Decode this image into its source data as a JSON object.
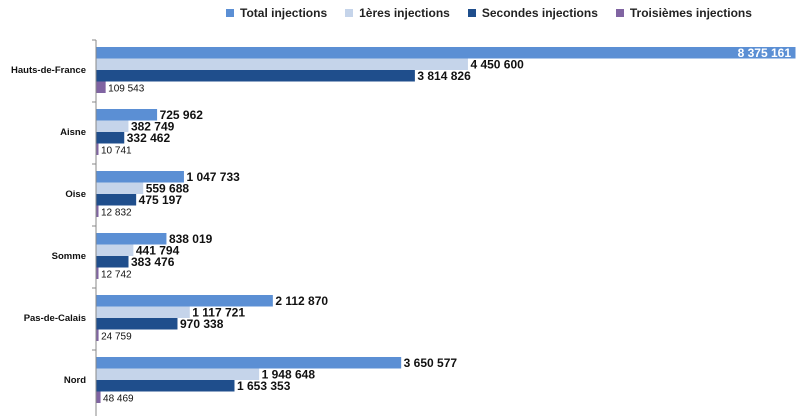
{
  "chart_data": {
    "type": "bar",
    "orientation": "horizontal",
    "title": "",
    "xlabel": "",
    "ylabel": "",
    "categories": [
      "Hauts-de-France",
      "Aisne",
      "Oise",
      "Somme",
      "Pas-de-Calais",
      "Nord"
    ],
    "series": [
      {
        "name": "Total injections",
        "color": "#5b8fd4",
        "values": [
          8375161,
          725962,
          1047733,
          838019,
          2112870,
          3650577
        ]
      },
      {
        "name": "1ères injections",
        "color": "#c5d4ea",
        "values": [
          4450600,
          382749,
          559688,
          441794,
          1117721,
          1948648
        ]
      },
      {
        "name": "Secondes injections",
        "color": "#1f4e8c",
        "values": [
          3814826,
          332462,
          475197,
          383476,
          970338,
          1653353
        ]
      },
      {
        "name": "Troisièmes injections",
        "color": "#8064a2",
        "values": [
          109543,
          10741,
          12832,
          12742,
          24759,
          48469
        ]
      }
    ],
    "value_labels": [
      [
        "8 375 161",
        "4 450 600",
        "3 814 826",
        "109 543"
      ],
      [
        "725 962",
        "382 749",
        "332 462",
        "10 741"
      ],
      [
        "1 047 733",
        "559 688",
        "475 197",
        "12 832"
      ],
      [
        "838 019",
        "441 794",
        "383 476",
        "12 742"
      ],
      [
        "2 112 870",
        "1 117 721",
        "970 338",
        "24 759"
      ],
      [
        "3 650 577",
        "1 948 648",
        "1 653 353",
        "48 469"
      ]
    ],
    "xlim": [
      0,
      8375161
    ],
    "grid": false,
    "legend_position": "top"
  }
}
